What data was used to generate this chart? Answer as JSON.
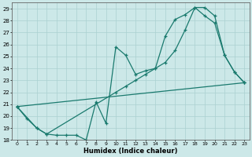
{
  "xlabel": "Humidex (Indice chaleur)",
  "ylabel": "",
  "xlim": [
    -0.5,
    23.5
  ],
  "ylim": [
    18,
    29.5
  ],
  "yticks": [
    18,
    19,
    20,
    21,
    22,
    23,
    24,
    25,
    26,
    27,
    28,
    29
  ],
  "xticks": [
    0,
    1,
    2,
    3,
    4,
    5,
    6,
    7,
    8,
    9,
    10,
    11,
    12,
    13,
    14,
    15,
    16,
    17,
    18,
    19,
    20,
    21,
    22,
    23
  ],
  "line_color": "#1a7a6e",
  "bg_color": "#cce8e8",
  "grid_color": "#aad0d0",
  "line1_x": [
    0,
    1,
    2,
    3,
    4,
    5,
    6,
    7,
    8,
    9,
    10,
    11,
    12,
    13,
    14,
    15,
    16,
    17,
    18,
    19,
    20,
    21,
    22,
    23
  ],
  "line1_y": [
    20.8,
    19.8,
    19.0,
    18.5,
    18.4,
    18.4,
    18.4,
    18.0,
    21.2,
    19.4,
    25.8,
    25.1,
    23.5,
    23.8,
    24.0,
    26.7,
    28.1,
    28.5,
    29.1,
    28.4,
    27.8,
    25.1,
    23.7,
    22.8
  ],
  "line2_x": [
    0,
    2,
    3,
    10,
    11,
    12,
    13,
    14,
    15,
    16,
    17,
    18,
    19,
    20,
    21,
    22,
    23
  ],
  "line2_y": [
    20.8,
    19.0,
    18.5,
    22.0,
    22.5,
    23.0,
    23.5,
    24.0,
    24.5,
    25.5,
    27.2,
    29.1,
    29.1,
    28.4,
    25.1,
    23.7,
    22.8
  ],
  "line3_x": [
    0,
    23
  ],
  "line3_y": [
    20.8,
    22.8
  ]
}
